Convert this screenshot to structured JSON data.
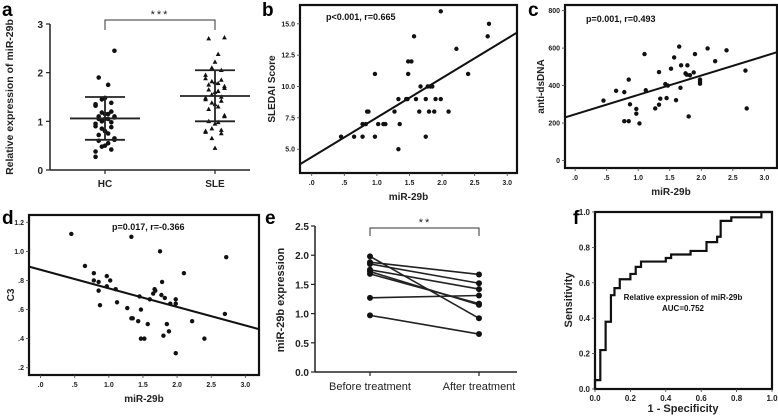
{
  "chart_data": [
    {
      "panel": "a",
      "type": "scatter",
      "ylabel": "Relative expression of miR-29b",
      "xlabel": "",
      "categories": [
        "HC",
        "SLE"
      ],
      "yticks": [
        "0",
        "1",
        "2",
        "3"
      ],
      "ylim": [
        0,
        3
      ],
      "significance": "***",
      "series": [
        {
          "name": "HC",
          "marker": "circle",
          "mean": 1.06,
          "sd_low": 0.62,
          "sd_high": 1.5,
          "values": [
            2.45,
            1.9,
            1.75,
            1.48,
            1.45,
            1.38,
            1.35,
            1.32,
            1.2,
            1.18,
            1.15,
            1.15,
            1.1,
            1.1,
            1.08,
            1.05,
            1.05,
            1.05,
            1.0,
            0.98,
            0.95,
            0.9,
            0.88,
            0.85,
            0.8,
            0.75,
            0.72,
            0.65,
            0.62,
            0.6,
            0.55,
            0.5,
            0.48,
            0.42,
            0.38,
            0.27
          ]
        },
        {
          "name": "SLE",
          "marker": "triangle",
          "mean": 1.52,
          "sd_low": 1.0,
          "sd_high": 2.05,
          "values": [
            2.72,
            2.7,
            2.38,
            2.22,
            2.1,
            2.05,
            1.95,
            1.88,
            1.85,
            1.82,
            1.8,
            1.78,
            1.75,
            1.72,
            1.68,
            1.65,
            1.62,
            1.6,
            1.55,
            1.5,
            1.48,
            1.45,
            1.42,
            1.38,
            1.35,
            1.3,
            1.25,
            1.12,
            1.1,
            1.0,
            0.98,
            0.95,
            0.85,
            0.82,
            0.8,
            0.78,
            0.75,
            0.65,
            0.45
          ]
        }
      ]
    },
    {
      "panel": "b",
      "type": "scatter",
      "xlabel": "miR-29b",
      "ylabel": "SLEDAI Score",
      "annotation": "p<0.001, r=0.665",
      "xticks": [
        ".0",
        ".5",
        "1.0",
        "1.5",
        "2.0",
        "2.5",
        "3.0"
      ],
      "yticks": [
        "5.0",
        "7.5",
        "10.0",
        "12.5",
        "15.0"
      ],
      "xlim": [
        -0.18,
        3.15
      ],
      "ylim": [
        3.1,
        16.5
      ],
      "fit": [
        [
          -0.18,
          3.8
        ],
        [
          3.15,
          14.3
        ]
      ],
      "points": [
        [
          0.45,
          6
        ],
        [
          0.65,
          6
        ],
        [
          0.78,
          6
        ],
        [
          0.78,
          7
        ],
        [
          0.83,
          7
        ],
        [
          0.85,
          8
        ],
        [
          0.87,
          8
        ],
        [
          0.97,
          11
        ],
        [
          0.97,
          6
        ],
        [
          1.02,
          7
        ],
        [
          1.1,
          7
        ],
        [
          1.13,
          7
        ],
        [
          1.27,
          8
        ],
        [
          1.33,
          9
        ],
        [
          1.33,
          5
        ],
        [
          1.35,
          7
        ],
        [
          1.45,
          9
        ],
        [
          1.47,
          9
        ],
        [
          1.48,
          11
        ],
        [
          1.48,
          12
        ],
        [
          1.53,
          12
        ],
        [
          1.57,
          14
        ],
        [
          1.6,
          9
        ],
        [
          1.65,
          8
        ],
        [
          1.67,
          10
        ],
        [
          1.75,
          9
        ],
        [
          1.75,
          6
        ],
        [
          1.78,
          10
        ],
        [
          1.8,
          8
        ],
        [
          1.82,
          10
        ],
        [
          1.85,
          10
        ],
        [
          1.88,
          8
        ],
        [
          1.9,
          9
        ],
        [
          1.98,
          16
        ],
        [
          1.98,
          9
        ],
        [
          2.1,
          8
        ],
        [
          2.22,
          13
        ],
        [
          2.4,
          11
        ],
        [
          2.7,
          14
        ],
        [
          2.72,
          15
        ]
      ]
    },
    {
      "panel": "c",
      "type": "scatter",
      "xlabel": "miR-29b",
      "ylabel": "anti-dsDNA",
      "annotation": "p=0.001, r=0.493",
      "xticks": [
        ".0",
        ".5",
        "1.0",
        "1.5",
        "2.0",
        "2.5",
        "3.0"
      ],
      "yticks": [
        "0",
        "200",
        "400",
        "600",
        "800"
      ],
      "xlim": [
        -0.16,
        3.2
      ],
      "ylim": [
        -40,
        830
      ],
      "fit": [
        [
          -0.16,
          230
        ],
        [
          3.2,
          578
        ]
      ],
      "points": [
        [
          0.45,
          320
        ],
        [
          0.65,
          372
        ],
        [
          0.78,
          365
        ],
        [
          0.78,
          210
        ],
        [
          0.85,
          432
        ],
        [
          0.85,
          210
        ],
        [
          0.87,
          300
        ],
        [
          0.97,
          275
        ],
        [
          0.97,
          250
        ],
        [
          1.02,
          198
        ],
        [
          1.1,
          568
        ],
        [
          1.12,
          375
        ],
        [
          1.27,
          278
        ],
        [
          1.33,
          472
        ],
        [
          1.33,
          298
        ],
        [
          1.35,
          330
        ],
        [
          1.43,
          408
        ],
        [
          1.45,
          333
        ],
        [
          1.47,
          400
        ],
        [
          1.52,
          490
        ],
        [
          1.57,
          550
        ],
        [
          1.6,
          322
        ],
        [
          1.65,
          608
        ],
        [
          1.67,
          388
        ],
        [
          1.68,
          508
        ],
        [
          1.75,
          465
        ],
        [
          1.77,
          458
        ],
        [
          1.78,
          508
        ],
        [
          1.8,
          235
        ],
        [
          1.82,
          455
        ],
        [
          1.88,
          470
        ],
        [
          1.9,
          568
        ],
        [
          1.98,
          432
        ],
        [
          1.98,
          420
        ],
        [
          1.98,
          410
        ],
        [
          2.1,
          598
        ],
        [
          2.22,
          530
        ],
        [
          2.4,
          588
        ],
        [
          2.7,
          480
        ],
        [
          2.72,
          278
        ]
      ]
    },
    {
      "panel": "d",
      "type": "scatter",
      "xlabel": "miR-29b",
      "ylabel": "C3",
      "annotation": "p=0.017, r=-0.366",
      "xticks": [
        ".0",
        ".5",
        "1.0",
        "1.5",
        "2.0",
        "2.5",
        "3.0"
      ],
      "yticks": [
        ".2",
        ".4",
        ".6",
        ".8",
        "1.0",
        "1.2"
      ],
      "xlim": [
        -0.17,
        3.2
      ],
      "ylim": [
        0.15,
        1.25
      ],
      "fit": [
        [
          -0.17,
          0.895
        ],
        [
          3.2,
          0.465
        ]
      ],
      "points": [
        [
          0.45,
          1.12
        ],
        [
          0.65,
          0.9
        ],
        [
          0.78,
          0.85
        ],
        [
          0.78,
          0.8
        ],
        [
          0.85,
          0.79
        ],
        [
          0.85,
          0.73
        ],
        [
          0.87,
          0.63
        ],
        [
          0.97,
          0.83
        ],
        [
          0.97,
          0.76
        ],
        [
          1.02,
          0.8
        ],
        [
          1.1,
          0.74
        ],
        [
          1.12,
          0.65
        ],
        [
          1.27,
          0.61
        ],
        [
          1.33,
          1.1
        ],
        [
          1.33,
          0.54
        ],
        [
          1.35,
          0.54
        ],
        [
          1.43,
          0.52
        ],
        [
          1.45,
          0.69
        ],
        [
          1.47,
          0.6
        ],
        [
          1.47,
          0.4
        ],
        [
          1.52,
          0.4
        ],
        [
          1.57,
          0.5
        ],
        [
          1.6,
          0.67
        ],
        [
          1.65,
          0.71
        ],
        [
          1.67,
          0.74
        ],
        [
          1.68,
          0.73
        ],
        [
          1.75,
          1.0
        ],
        [
          1.77,
          0.7
        ],
        [
          1.78,
          0.79
        ],
        [
          1.8,
          0.42
        ],
        [
          1.82,
          0.68
        ],
        [
          1.85,
          0.5
        ],
        [
          1.88,
          0.45
        ],
        [
          1.9,
          0.64
        ],
        [
          1.98,
          0.64
        ],
        [
          1.98,
          0.67
        ],
        [
          1.98,
          0.3
        ],
        [
          2.1,
          0.85
        ],
        [
          2.22,
          0.52
        ],
        [
          2.4,
          0.4
        ],
        [
          2.7,
          0.57
        ],
        [
          2.72,
          0.96
        ]
      ]
    },
    {
      "panel": "e",
      "type": "line",
      "ylabel": "miR-29b expression",
      "categories": [
        "Before treatment",
        "After treatment"
      ],
      "yticks": [
        "0.0",
        "0.5",
        "1.0",
        "1.5",
        "2.0",
        "2.5"
      ],
      "ylim": [
        0,
        2.5
      ],
      "significance": "**",
      "pairs": [
        [
          1.98,
          0.92
        ],
        [
          1.88,
          1.67
        ],
        [
          1.85,
          1.52
        ],
        [
          1.75,
          1.42
        ],
        [
          1.72,
          1.15
        ],
        [
          1.68,
          1.17
        ],
        [
          1.27,
          1.31
        ],
        [
          0.97,
          0.65
        ]
      ]
    },
    {
      "panel": "f",
      "type": "line",
      "xlabel": "1 - Specificity",
      "ylabel": "Sensitivity",
      "annotation": "Relative expression of miR-29b",
      "annotation2": "AUC=0.752",
      "xticks": [
        "0.0",
        "0.2",
        "0.4",
        "0.6",
        "0.8",
        "1.0"
      ],
      "yticks": [
        "0.0",
        "0.2",
        "0.4",
        "0.6",
        "0.8",
        "1.0"
      ],
      "xlim": [
        0,
        1
      ],
      "ylim": [
        0,
        1
      ],
      "roc": [
        [
          0,
          0
        ],
        [
          0,
          0.05
        ],
        [
          0.03,
          0.05
        ],
        [
          0.03,
          0.22
        ],
        [
          0.06,
          0.22
        ],
        [
          0.06,
          0.38
        ],
        [
          0.09,
          0.38
        ],
        [
          0.09,
          0.53
        ],
        [
          0.11,
          0.53
        ],
        [
          0.11,
          0.57
        ],
        [
          0.14,
          0.57
        ],
        [
          0.14,
          0.62
        ],
        [
          0.2,
          0.62
        ],
        [
          0.2,
          0.65
        ],
        [
          0.23,
          0.65
        ],
        [
          0.23,
          0.69
        ],
        [
          0.26,
          0.69
        ],
        [
          0.26,
          0.72
        ],
        [
          0.4,
          0.72
        ],
        [
          0.4,
          0.74
        ],
        [
          0.43,
          0.74
        ],
        [
          0.43,
          0.76
        ],
        [
          0.54,
          0.76
        ],
        [
          0.54,
          0.78
        ],
        [
          0.63,
          0.78
        ],
        [
          0.63,
          0.83
        ],
        [
          0.69,
          0.83
        ],
        [
          0.69,
          0.86
        ],
        [
          0.71,
          0.86
        ],
        [
          0.71,
          0.95
        ],
        [
          0.77,
          0.95
        ],
        [
          0.77,
          0.97
        ],
        [
          0.94,
          0.97
        ],
        [
          0.94,
          1
        ],
        [
          1,
          1
        ]
      ]
    }
  ]
}
